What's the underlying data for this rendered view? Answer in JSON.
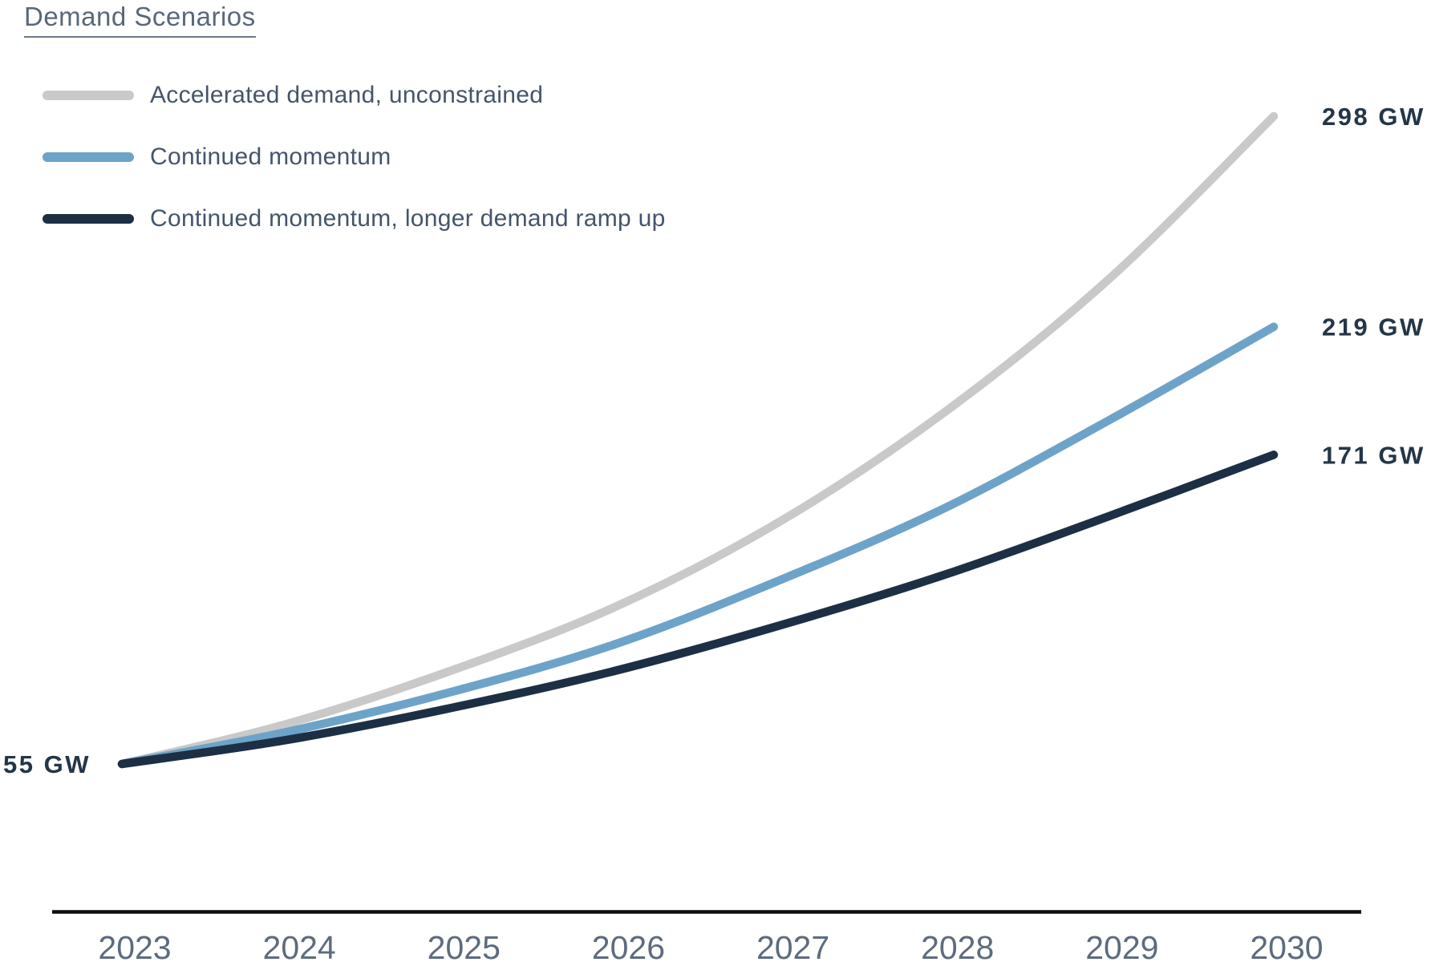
{
  "title": {
    "text": "Demand Scenarios"
  },
  "chart_data": {
    "type": "line",
    "title": "Demand Scenarios",
    "x": [
      2023,
      2024,
      2025,
      2026,
      2027,
      2028,
      2029,
      2030
    ],
    "x_tick_labels": [
      "2023",
      "2024",
      "2025",
      "2026",
      "2027",
      "2028",
      "2029",
      "2030"
    ],
    "unit": "GW",
    "start_label": "55 GW",
    "series": [
      {
        "name": "Accelerated demand, unconstrained",
        "color": "#c9c9c9",
        "values": [
          55,
          70,
          90,
          114,
          146,
          187,
          237,
          298
        ],
        "end_label": "298 GW"
      },
      {
        "name": "Continued momentum",
        "color": "#6da3c8",
        "values": [
          55,
          67,
          82,
          100,
          124,
          151,
          184,
          219
        ],
        "end_label": "219 GW"
      },
      {
        "name": "Continued momentum, longer demand ramp up",
        "color": "#1d2f44",
        "values": [
          55,
          64,
          76,
          90,
          107,
          126,
          148,
          171
        ],
        "end_label": "171 GW"
      }
    ],
    "ylim": [
      55,
      298
    ],
    "xlabel": "",
    "ylabel": "",
    "grid": false,
    "legend_position": "top-left"
  },
  "colors": {
    "title_text": "#59687b",
    "legend_text": "#44556b",
    "year_label": "#5d6b7e",
    "value_label": "#233648",
    "axis_line": "#0d0d0d"
  }
}
